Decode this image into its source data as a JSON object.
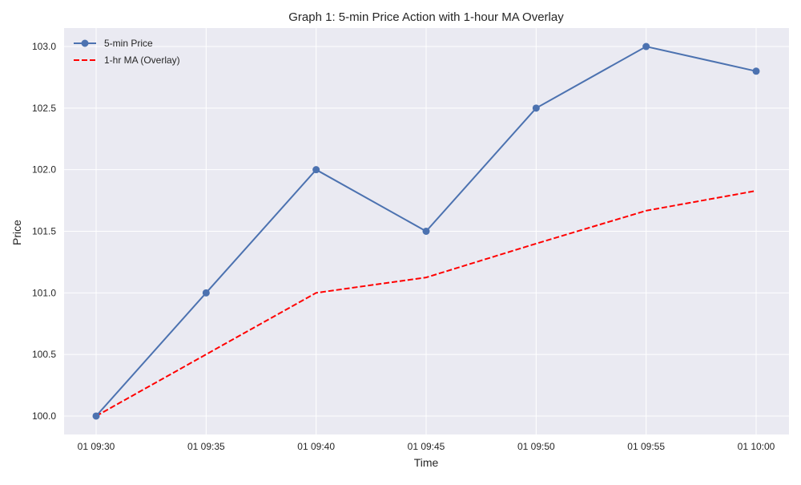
{
  "chart_data": {
    "type": "line",
    "title": "Graph 1: 5-min Price Action with 1-hour MA Overlay",
    "xlabel": "Time",
    "ylabel": "Price",
    "x": [
      "01 09:30",
      "01 09:35",
      "01 09:40",
      "01 09:45",
      "01 09:50",
      "01 09:55",
      "01 10:00"
    ],
    "ylim": [
      99.85,
      103.15
    ],
    "yticks": [
      "100.0",
      "100.5",
      "101.0",
      "101.5",
      "102.0",
      "102.5",
      "103.0"
    ],
    "grid": true,
    "legend": "top-left",
    "series": [
      {
        "name": "5-min Price",
        "values": [
          100.0,
          101.0,
          102.0,
          101.5,
          102.5,
          103.0,
          102.8
        ],
        "color": "#4c72b0",
        "style": "solid",
        "marker": "circle"
      },
      {
        "name": "1-hr MA (Overlay)",
        "values": [
          100.0,
          100.5,
          101.0,
          101.125,
          101.4,
          101.667,
          101.829
        ],
        "color": "#ff0000",
        "style": "dashed",
        "marker": "none"
      }
    ],
    "colors": {
      "background": "#eaeaf2",
      "grid": "#ffffff"
    }
  }
}
